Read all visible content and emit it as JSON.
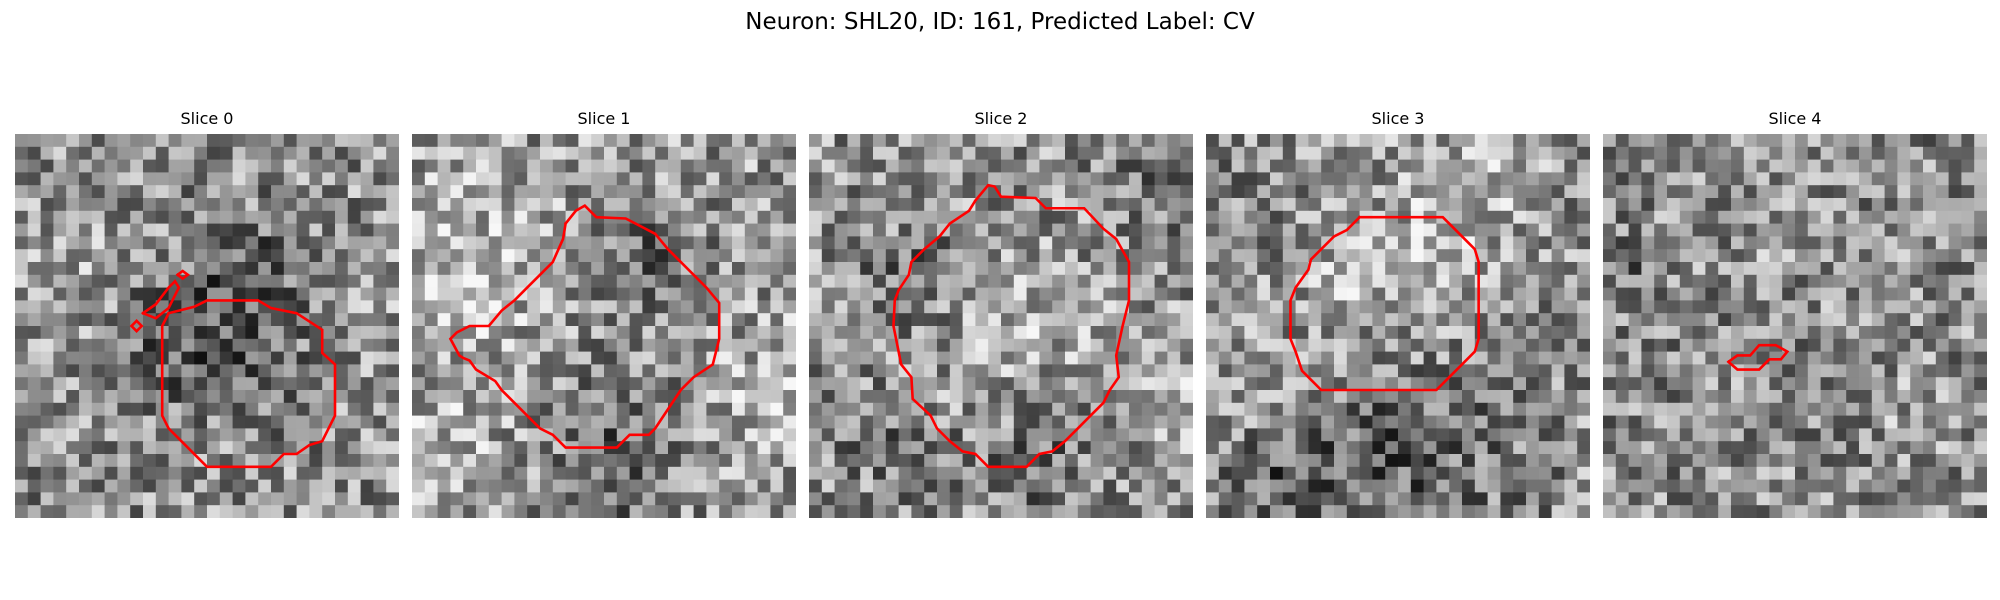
{
  "figure": {
    "title": "Neuron: SHL20, ID: 161, Predicted Label: CV"
  },
  "colors": {
    "contour": "#ff0000",
    "colormap": "gray"
  },
  "panels": [
    {
      "title": "Slice 0",
      "image": {
        "grid": 30,
        "seed": 11,
        "mean": 0.56,
        "dark_spots": [
          [
            16,
            15,
            4.5,
            0.18
          ],
          [
            18,
            10,
            2.5,
            0.14
          ],
          [
            11,
            16,
            2.5,
            0.1
          ]
        ],
        "bright_spots": [
          [
            3,
            11,
            3,
            0.12
          ],
          [
            27,
            13,
            3,
            0.1
          ]
        ]
      },
      "contours": [
        [
          [
            12,
            14
          ],
          [
            14,
            13.5
          ],
          [
            15,
            13
          ],
          [
            19,
            13
          ],
          [
            20,
            13.6
          ],
          [
            22,
            14
          ],
          [
            24,
            15.3
          ],
          [
            24,
            17.1
          ],
          [
            25,
            18
          ],
          [
            25,
            22
          ],
          [
            24,
            24
          ],
          [
            23,
            24.3
          ],
          [
            22,
            25
          ],
          [
            21,
            25
          ],
          [
            20,
            26
          ],
          [
            15,
            26
          ],
          [
            13,
            24
          ],
          [
            12,
            23
          ],
          [
            11.5,
            22
          ],
          [
            11.5,
            15
          ],
          [
            12,
            14
          ]
        ],
        [
          [
            10,
            14
          ],
          [
            11,
            13.3
          ],
          [
            12,
            12
          ],
          [
            12.5,
            11.5
          ],
          [
            12.8,
            12
          ],
          [
            12,
            13.6
          ],
          [
            11,
            14.4
          ],
          [
            10,
            14
          ]
        ],
        [
          [
            12.7,
            11
          ],
          [
            13.1,
            10.7
          ],
          [
            13.5,
            11
          ],
          [
            13.1,
            11.3
          ],
          [
            12.7,
            11
          ]
        ],
        [
          [
            9.1,
            15
          ],
          [
            9.5,
            14.6
          ],
          [
            9.9,
            15
          ],
          [
            9.5,
            15.4
          ],
          [
            9.1,
            15
          ]
        ]
      ]
    },
    {
      "title": "Slice 1",
      "image": {
        "grid": 30,
        "seed": 23,
        "mean": 0.6,
        "dark_spots": [
          [
            18,
            10,
            3,
            0.2
          ],
          [
            17,
            22,
            4,
            0.12
          ],
          [
            15,
            27,
            4,
            0.12
          ]
        ],
        "bright_spots": [
          [
            3,
            10,
            5,
            0.16
          ],
          [
            27,
            20,
            4,
            0.12
          ],
          [
            2,
            24,
            3,
            0.1
          ]
        ]
      },
      "contours": [
        [
          [
            12,
            7
          ],
          [
            12.8,
            6
          ],
          [
            13.5,
            5.6
          ],
          [
            14.4,
            6.5
          ],
          [
            16.7,
            6.6
          ],
          [
            19,
            7.8
          ],
          [
            20,
            9
          ],
          [
            23,
            12
          ],
          [
            24,
            13.2
          ],
          [
            24,
            16
          ],
          [
            23.5,
            18
          ],
          [
            22,
            19
          ],
          [
            21,
            20
          ],
          [
            19,
            23
          ],
          [
            18.5,
            23.5
          ],
          [
            17,
            23.5
          ],
          [
            16,
            24.5
          ],
          [
            12,
            24.5
          ],
          [
            11,
            23.5
          ],
          [
            10,
            23
          ],
          [
            8,
            21
          ],
          [
            7,
            20
          ],
          [
            6.5,
            19.3
          ],
          [
            5,
            18.4
          ],
          [
            4.5,
            17.7
          ],
          [
            4,
            17.5
          ],
          [
            3.7,
            17.3
          ],
          [
            3,
            16
          ],
          [
            3.5,
            15.5
          ],
          [
            4.5,
            15
          ],
          [
            6,
            15
          ],
          [
            7,
            13.8
          ],
          [
            8,
            13
          ],
          [
            9,
            12
          ],
          [
            10,
            11
          ],
          [
            11,
            10
          ],
          [
            11.8,
            8.2
          ],
          [
            12,
            7
          ]
        ]
      ]
    },
    {
      "title": "Slice 2",
      "image": {
        "grid": 30,
        "seed": 37,
        "mean": 0.57,
        "dark_spots": [
          [
            8,
            11,
            3,
            0.16
          ],
          [
            17,
            25,
            4,
            0.14
          ],
          [
            27,
            4,
            3,
            0.1
          ],
          [
            6,
            23,
            3,
            0.12
          ]
        ],
        "bright_spots": [
          [
            15,
            15,
            5,
            0.14
          ],
          [
            28,
            20,
            3,
            0.1
          ]
        ]
      },
      "contours": [
        [
          [
            13,
            5.2
          ],
          [
            14,
            4
          ],
          [
            14.5,
            4.1
          ],
          [
            15,
            4.9
          ],
          [
            17.7,
            5
          ],
          [
            18.5,
            5.8
          ],
          [
            21.5,
            5.8
          ],
          [
            23,
            7.4
          ],
          [
            24,
            8.2
          ],
          [
            25,
            10
          ],
          [
            25,
            13
          ],
          [
            24.5,
            15
          ],
          [
            24,
            17.3
          ],
          [
            24.2,
            19
          ],
          [
            23.5,
            20
          ],
          [
            23,
            21
          ],
          [
            22,
            22
          ],
          [
            21,
            23
          ],
          [
            20,
            24
          ],
          [
            19,
            24.8
          ],
          [
            18,
            25
          ],
          [
            17,
            26
          ],
          [
            14,
            26
          ],
          [
            13,
            25
          ],
          [
            12,
            24.8
          ],
          [
            11,
            24
          ],
          [
            10,
            23
          ],
          [
            9.5,
            22
          ],
          [
            8.1,
            20.7
          ],
          [
            8,
            19
          ],
          [
            7.2,
            18
          ],
          [
            6.8,
            16
          ],
          [
            6.6,
            15
          ],
          [
            6.7,
            13
          ],
          [
            7,
            12.2
          ],
          [
            7.8,
            11
          ],
          [
            8,
            10
          ],
          [
            9,
            9
          ],
          [
            10.2,
            8
          ],
          [
            11,
            7
          ],
          [
            12.5,
            6
          ],
          [
            13,
            5.2
          ]
        ]
      ]
    },
    {
      "title": "Slice 3",
      "image": {
        "grid": 30,
        "seed": 53,
        "mean": 0.58,
        "dark_spots": [
          [
            14,
            25,
            7,
            0.2
          ],
          [
            5,
            27,
            3,
            0.14
          ],
          [
            2,
            5,
            3,
            0.08
          ]
        ],
        "bright_spots": [
          [
            14,
            11,
            5,
            0.16
          ],
          [
            20,
            4,
            3,
            0.1
          ],
          [
            4,
            20,
            3,
            0.1
          ]
        ]
      },
      "contours": [
        [
          [
            12,
            6.5
          ],
          [
            18.5,
            6.5
          ],
          [
            19,
            7
          ],
          [
            21,
            9
          ],
          [
            21.3,
            10
          ],
          [
            21.3,
            16
          ],
          [
            21,
            17
          ],
          [
            20,
            18
          ],
          [
            19,
            19
          ],
          [
            18,
            20
          ],
          [
            9,
            20
          ],
          [
            8,
            19
          ],
          [
            7.5,
            18.5
          ],
          [
            7,
            17
          ],
          [
            6.6,
            16
          ],
          [
            6.6,
            13
          ],
          [
            7,
            12
          ],
          [
            8,
            10.6
          ],
          [
            8.2,
            9.8
          ],
          [
            9,
            9
          ],
          [
            10,
            8
          ],
          [
            11,
            7.5
          ],
          [
            12,
            6.5
          ]
        ]
      ]
    },
    {
      "title": "Slice 4",
      "image": {
        "grid": 30,
        "seed": 71,
        "mean": 0.55,
        "dark_spots": [
          [
            1,
            10,
            2,
            0.14
          ],
          [
            14,
            5,
            3,
            0.06
          ]
        ],
        "bright_spots": [
          [
            14,
            6,
            3,
            0.12
          ],
          [
            23,
            20,
            3,
            0.06
          ]
        ]
      },
      "contours": [
        [
          [
            9.8,
            17.8
          ],
          [
            10.5,
            17.3
          ],
          [
            11.5,
            17.3
          ],
          [
            12.2,
            16.5
          ],
          [
            13.5,
            16.5
          ],
          [
            14.4,
            17
          ],
          [
            13.9,
            17.6
          ],
          [
            13,
            17.6
          ],
          [
            12.2,
            18.4
          ],
          [
            10.5,
            18.4
          ],
          [
            9.8,
            17.8
          ]
        ]
      ]
    }
  ]
}
